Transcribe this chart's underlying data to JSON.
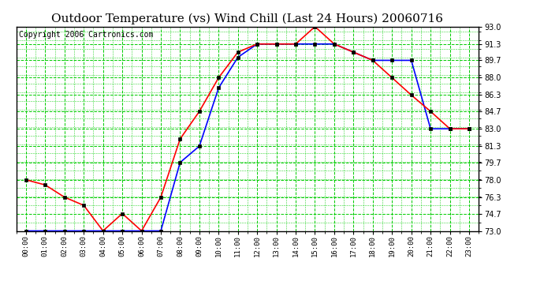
{
  "title": "Outdoor Temperature (vs) Wind Chill (Last 24 Hours) 20060716",
  "copyright": "Copyright 2006 Cartronics.com",
  "hours": [
    "00:00",
    "01:00",
    "02:00",
    "03:00",
    "04:00",
    "05:00",
    "06:00",
    "07:00",
    "08:00",
    "09:00",
    "10:00",
    "11:00",
    "12:00",
    "13:00",
    "14:00",
    "15:00",
    "16:00",
    "17:00",
    "18:00",
    "19:00",
    "20:00",
    "21:00",
    "22:00",
    "23:00"
  ],
  "temp": [
    78.0,
    77.5,
    76.3,
    75.5,
    73.0,
    74.7,
    73.0,
    76.3,
    82.0,
    84.7,
    88.0,
    90.5,
    91.3,
    91.3,
    91.3,
    93.0,
    91.3,
    90.5,
    89.7,
    88.0,
    86.3,
    84.7,
    83.0,
    83.0
  ],
  "windchill": [
    73.0,
    73.0,
    73.0,
    73.0,
    73.0,
    73.0,
    73.0,
    73.0,
    79.7,
    81.3,
    87.0,
    90.0,
    91.3,
    91.3,
    91.3,
    91.3,
    91.3,
    90.5,
    89.7,
    89.7,
    89.7,
    83.0,
    83.0,
    83.0
  ],
  "temp_color": "#ff0000",
  "windchill_color": "#0000ff",
  "ylim_min": 73.0,
  "ylim_max": 93.0,
  "yticks": [
    73.0,
    74.7,
    76.3,
    78.0,
    79.7,
    81.3,
    83.0,
    84.7,
    86.3,
    88.0,
    89.7,
    91.3,
    93.0
  ],
  "grid_color": "#00cc00",
  "bg_color": "#ffffff",
  "title_fontsize": 11,
  "copyright_fontsize": 7,
  "marker": "s",
  "markersize": 3
}
